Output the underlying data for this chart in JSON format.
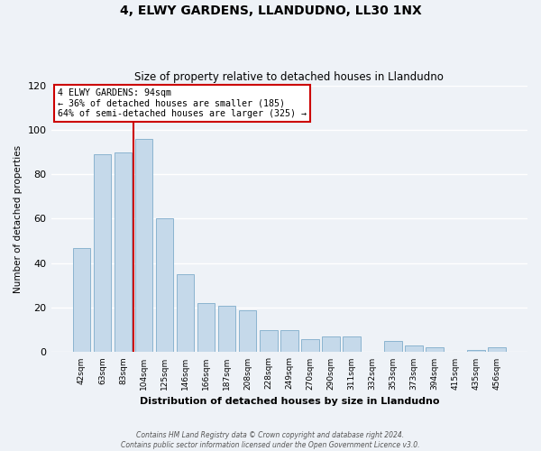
{
  "title": "4, ELWY GARDENS, LLANDUDNO, LL30 1NX",
  "subtitle": "Size of property relative to detached houses in Llandudno",
  "xlabel": "Distribution of detached houses by size in Llandudno",
  "ylabel": "Number of detached properties",
  "bar_labels": [
    "42sqm",
    "63sqm",
    "83sqm",
    "104sqm",
    "125sqm",
    "146sqm",
    "166sqm",
    "187sqm",
    "208sqm",
    "228sqm",
    "249sqm",
    "270sqm",
    "290sqm",
    "311sqm",
    "332sqm",
    "353sqm",
    "373sqm",
    "394sqm",
    "415sqm",
    "435sqm",
    "456sqm"
  ],
  "bar_values": [
    47,
    89,
    90,
    96,
    60,
    35,
    22,
    21,
    19,
    10,
    10,
    6,
    7,
    7,
    0,
    5,
    3,
    2,
    0,
    1,
    2
  ],
  "bar_color": "#c5d9ea",
  "bar_edge_color": "#8bb4d0",
  "ylim": [
    0,
    120
  ],
  "yticks": [
    0,
    20,
    40,
    60,
    80,
    100,
    120
  ],
  "marker_index": 3,
  "marker_label": "4 ELWY GARDENS: 94sqm",
  "annotation_line1": "← 36% of detached houses are smaller (185)",
  "annotation_line2": "64% of semi-detached houses are larger (325) →",
  "annotation_box_color": "#ffffff",
  "annotation_box_edge_color": "#cc0000",
  "marker_line_color": "#cc0000",
  "footer1": "Contains HM Land Registry data © Crown copyright and database right 2024.",
  "footer2": "Contains public sector information licensed under the Open Government Licence v3.0.",
  "background_color": "#eef2f7",
  "grid_color": "#ffffff"
}
